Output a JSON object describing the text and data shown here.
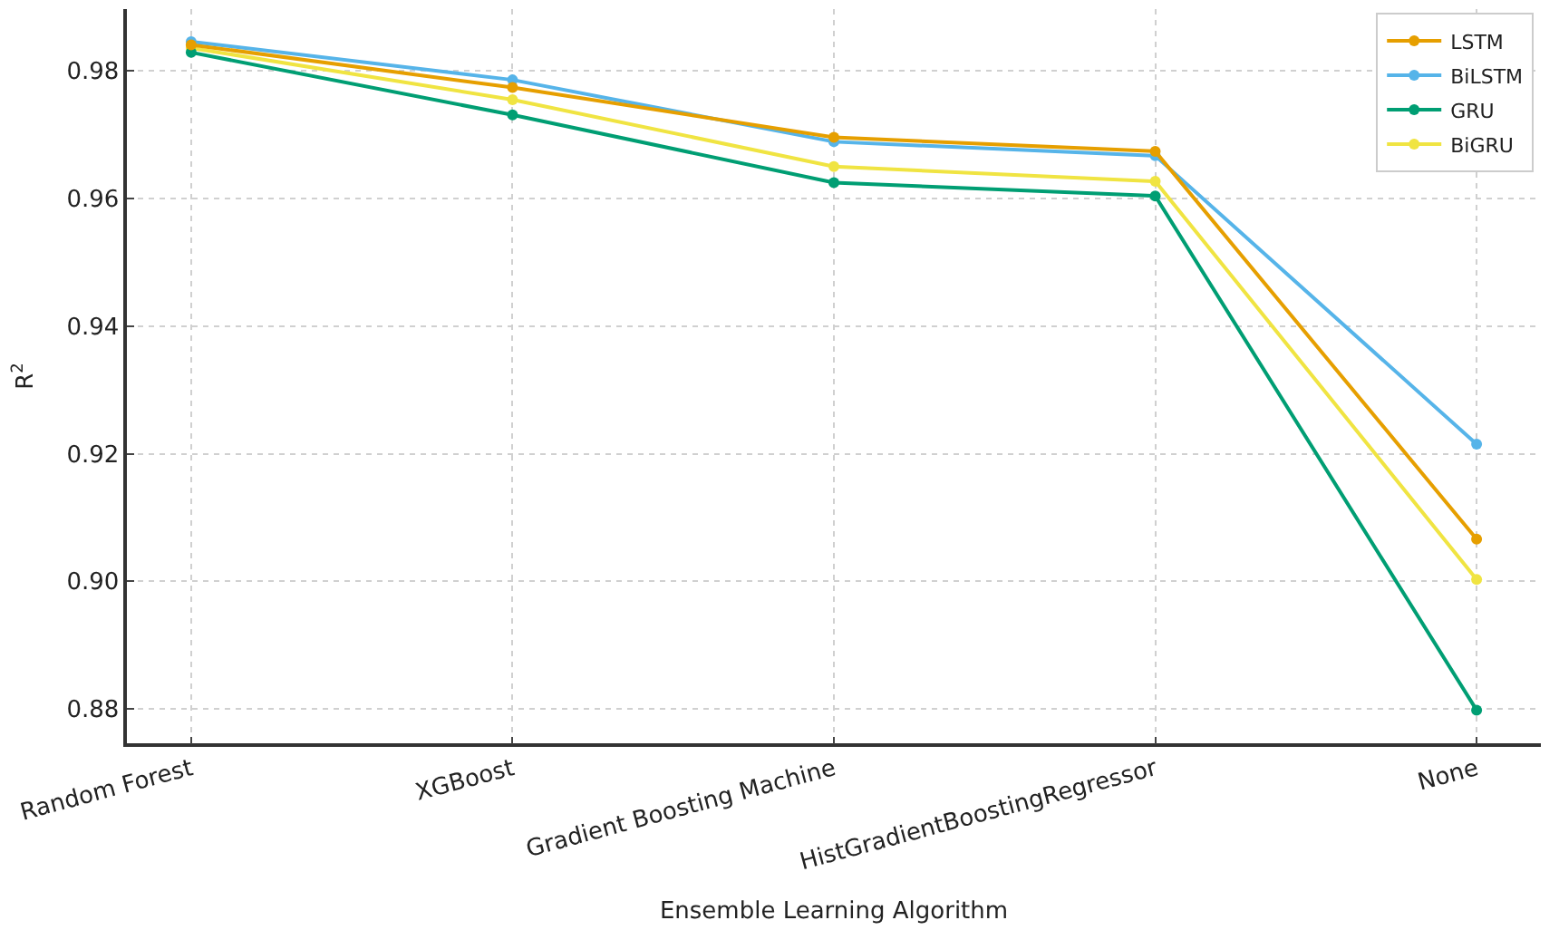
{
  "chart_data": {
    "type": "line",
    "xlabel": "Ensemble Learning Algorithm",
    "ylabel": "R$^{2}$",
    "categories": [
      "Random Forest",
      "XGBoost",
      "Gradient Boosting Machine",
      "HistGradientBoostingRegressor",
      "None"
    ],
    "series": [
      {
        "name": "LSTM",
        "color": "#e69f00",
        "values": [
          0.9841,
          0.9774,
          0.9696,
          0.9674,
          0.9066
        ]
      },
      {
        "name": "BiLSTM",
        "color": "#56b4e9",
        "values": [
          0.9846,
          0.9786,
          0.9689,
          0.9667,
          0.9215
        ]
      },
      {
        "name": "GRU",
        "color": "#009e73",
        "values": [
          0.9829,
          0.9731,
          0.9625,
          0.9604,
          0.8798
        ]
      },
      {
        "name": "BiGRU",
        "color": "#f0e442",
        "values": [
          0.9836,
          0.9755,
          0.965,
          0.9627,
          0.9003
        ]
      }
    ],
    "ylim": [
      0.8746,
      0.9897
    ],
    "yticks": [
      {
        "value": 0.88,
        "label": "0.88"
      },
      {
        "value": 0.9,
        "label": "0.90"
      },
      {
        "value": 0.92,
        "label": "0.92"
      },
      {
        "value": 0.94,
        "label": "0.94"
      },
      {
        "value": 0.96,
        "label": "0.96"
      },
      {
        "value": 0.98,
        "label": "0.98"
      }
    ],
    "grid": true,
    "legend": "top right",
    "marker": "circle",
    "line_style": "solid"
  }
}
